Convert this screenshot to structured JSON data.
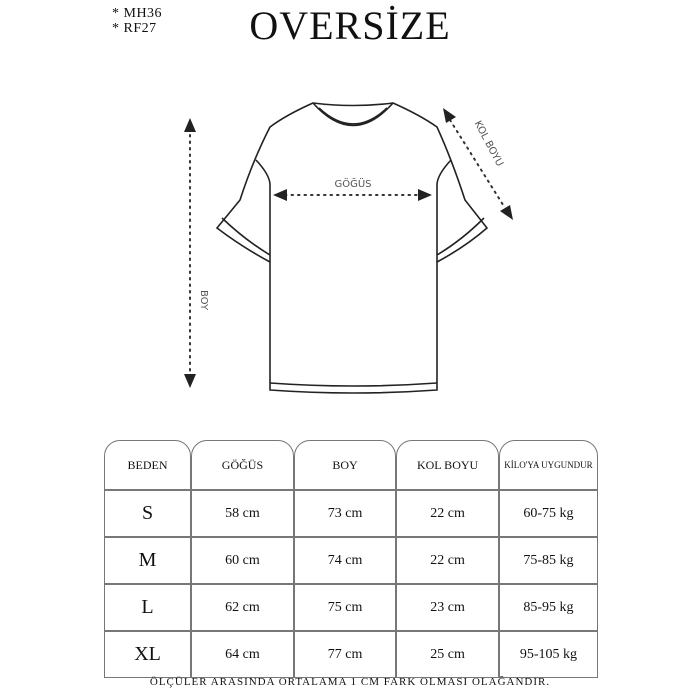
{
  "codes": [
    "* MH36",
    "* RF27"
  ],
  "title": "OVERSİZE",
  "diagram": {
    "chest_label": "GÖĞÜS",
    "length_label": "BOY",
    "sleeve_label": "KOL BOYU"
  },
  "table": {
    "headers": [
      "BEDEN",
      "GÖĞÜS",
      "BOY",
      "KOL BOYU",
      "KİLO'YA UYGUNDUR"
    ],
    "rows": [
      [
        "S",
        "58 cm",
        "73 cm",
        "22  cm",
        "60-75 kg"
      ],
      [
        "M",
        "60 cm",
        "74 cm",
        "22 cm",
        "75-85 kg"
      ],
      [
        "L",
        "62 cm",
        "75 cm",
        "23 cm",
        "85-95 kg"
      ],
      [
        "XL",
        "64 cm",
        "77 cm",
        "25 cm",
        "95-105 kg"
      ]
    ]
  },
  "footer": "ÖLÇÜLER ARASINDA ORTALAMA 1 CM FARK OLMASI OLAĞANDIR."
}
